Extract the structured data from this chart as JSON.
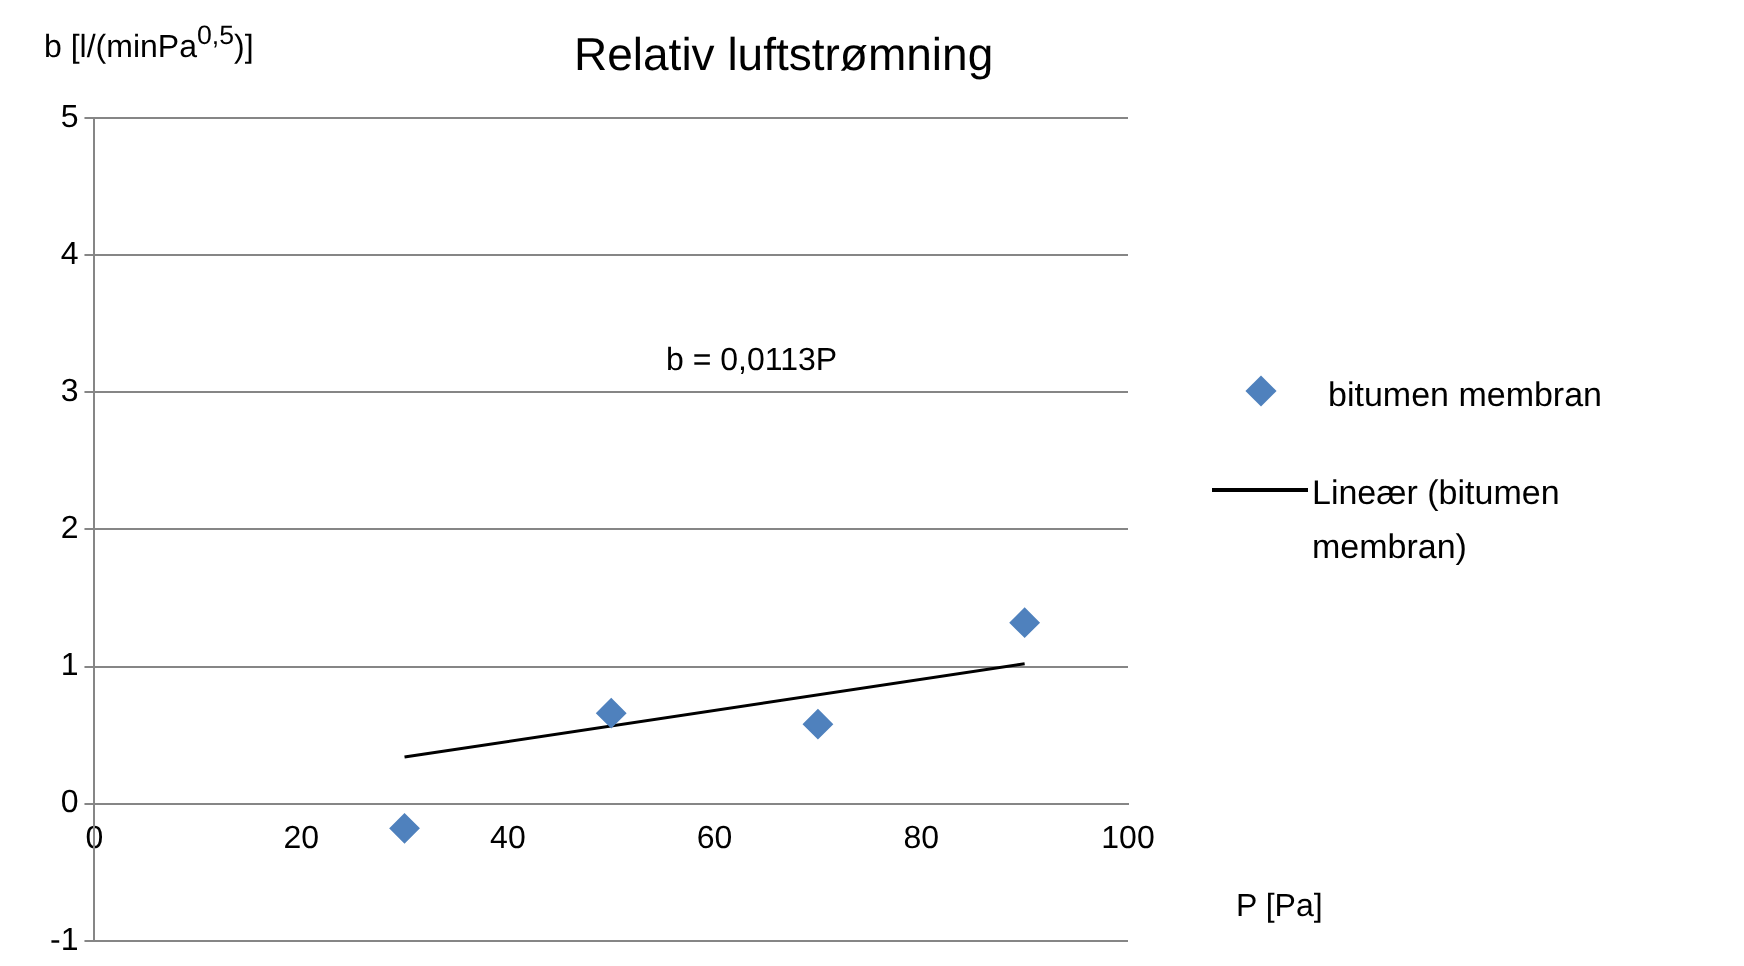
{
  "chart_data": {
    "type": "scatter",
    "title": "Relativ luftstrømning",
    "xlabel": "P [Pa]",
    "ylabel": "b [l/(minPa$^{0,5}$)]",
    "annotations": [
      "b = 0,0113P"
    ],
    "x": [
      30,
      50,
      70,
      90
    ],
    "series": [
      {
        "name": "bitumen membran",
        "color": "#4f81bd",
        "marker": "diamond",
        "values": [
          -0.18,
          0.66,
          0.58,
          1.32
        ]
      },
      {
        "name": "Lineær (bitumen membran)",
        "type": "line",
        "color": "#000000",
        "marker": "none",
        "x": [
          30,
          90
        ],
        "values": [
          0.34,
          1.02
        ]
      }
    ],
    "xlim": [
      0,
      100
    ],
    "xticks": [
      0,
      20,
      40,
      60,
      80,
      100
    ],
    "ylim": [
      -1,
      5
    ],
    "yticks": [
      -1,
      0,
      1,
      2,
      3,
      4,
      5
    ],
    "grid": "y",
    "legend": "right"
  }
}
